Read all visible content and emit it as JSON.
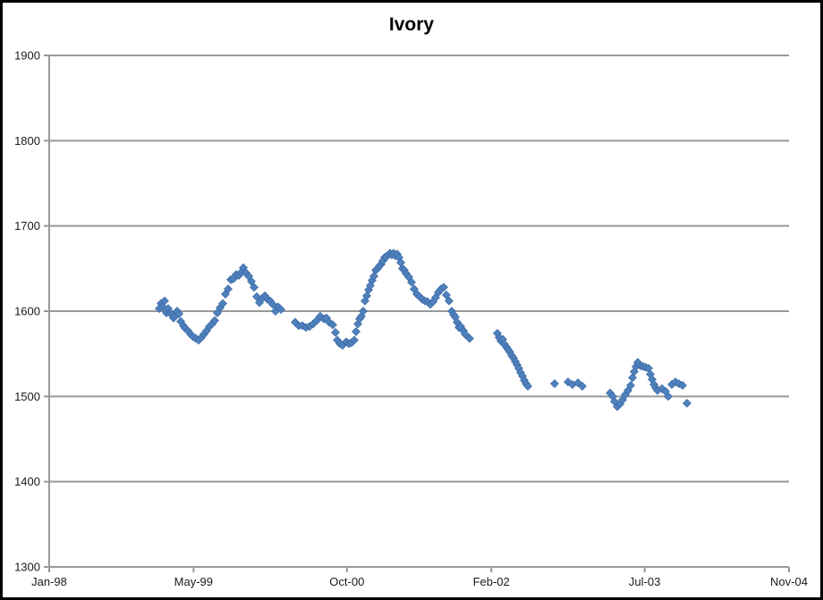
{
  "window": {
    "background": "#ffffff",
    "frame_border_color": "#000000"
  },
  "chart_data": {
    "type": "scatter",
    "title": "Ivory",
    "xlabel": "",
    "ylabel": "",
    "x_unit": "months since Jan-1998",
    "xlim": [
      0,
      82
    ],
    "ylim": [
      1300,
      1900
    ],
    "grid": "horizontal gridlines every 100",
    "gridline_color": "#999999",
    "label_color": "#1a1a1a",
    "legend": "none",
    "x_ticks": [
      {
        "offset": 0,
        "label": "Jan-98"
      },
      {
        "offset": 16,
        "label": "May-99"
      },
      {
        "offset": 33,
        "label": "Oct-00"
      },
      {
        "offset": 49,
        "label": "Feb-02"
      },
      {
        "offset": 66,
        "label": "Jul-03"
      },
      {
        "offset": 82,
        "label": "Nov-04"
      }
    ],
    "y_ticks": [
      1900,
      1800,
      1700,
      1600,
      1500,
      1400,
      1300
    ],
    "series": [
      {
        "name": "Ivory",
        "marker": "diamond",
        "color": "#4F81BD",
        "edge_color": "#3F6DA8",
        "points": [
          [
            12.2,
            1603
          ],
          [
            12.39,
            1609
          ],
          [
            12.59,
            1605
          ],
          [
            12.79,
            1612
          ],
          [
            12.99,
            1598
          ],
          [
            13.19,
            1603
          ],
          [
            13.39,
            1598
          ],
          [
            13.58,
            1596
          ],
          [
            13.78,
            1592
          ],
          [
            13.98,
            1595
          ],
          [
            14.18,
            1600
          ],
          [
            14.38,
            1597
          ],
          [
            14.58,
            1588
          ],
          [
            14.87,
            1583
          ],
          [
            15.07,
            1580
          ],
          [
            15.37,
            1577
          ],
          [
            15.67,
            1573
          ],
          [
            15.96,
            1570
          ],
          [
            16.26,
            1568
          ],
          [
            16.56,
            1566
          ],
          [
            16.86,
            1569
          ],
          [
            17.15,
            1573
          ],
          [
            17.45,
            1577
          ],
          [
            17.75,
            1582
          ],
          [
            18.05,
            1585
          ],
          [
            18.34,
            1589
          ],
          [
            18.64,
            1598
          ],
          [
            18.94,
            1604
          ],
          [
            19.24,
            1609
          ],
          [
            19.53,
            1620
          ],
          [
            19.83,
            1626
          ],
          [
            20.13,
            1637
          ],
          [
            20.42,
            1638
          ],
          [
            20.72,
            1643
          ],
          [
            21.02,
            1642
          ],
          [
            21.32,
            1646
          ],
          [
            21.52,
            1651
          ],
          [
            21.81,
            1645
          ],
          [
            22.11,
            1641
          ],
          [
            22.41,
            1635
          ],
          [
            22.71,
            1628
          ],
          [
            23.0,
            1617
          ],
          [
            23.3,
            1610
          ],
          [
            23.6,
            1615
          ],
          [
            23.9,
            1618
          ],
          [
            24.19,
            1614
          ],
          [
            24.49,
            1612
          ],
          [
            24.79,
            1608
          ],
          [
            25.08,
            1600
          ],
          [
            25.38,
            1605
          ],
          [
            25.68,
            1602
          ],
          [
            27.27,
            1587
          ],
          [
            27.66,
            1583
          ],
          [
            28.06,
            1583
          ],
          [
            28.46,
            1581
          ],
          [
            28.85,
            1582
          ],
          [
            29.25,
            1585
          ],
          [
            29.65,
            1589
          ],
          [
            30.04,
            1594
          ],
          [
            30.44,
            1591
          ],
          [
            30.74,
            1592
          ],
          [
            31.03,
            1587
          ],
          [
            31.43,
            1584
          ],
          [
            31.73,
            1575
          ],
          [
            31.93,
            1566
          ],
          [
            32.22,
            1562
          ],
          [
            32.52,
            1560
          ],
          [
            32.92,
            1564
          ],
          [
            33.22,
            1562
          ],
          [
            33.51,
            1563
          ],
          [
            33.81,
            1566
          ],
          [
            34.01,
            1576
          ],
          [
            34.21,
            1585
          ],
          [
            34.4,
            1591
          ],
          [
            34.6,
            1594
          ],
          [
            34.8,
            1600
          ],
          [
            35.0,
            1612
          ],
          [
            35.2,
            1618
          ],
          [
            35.4,
            1625
          ],
          [
            35.59,
            1630
          ],
          [
            35.79,
            1636
          ],
          [
            35.99,
            1641
          ],
          [
            36.19,
            1648
          ],
          [
            36.39,
            1650
          ],
          [
            36.59,
            1653
          ],
          [
            36.78,
            1655
          ],
          [
            36.98,
            1659
          ],
          [
            37.18,
            1663
          ],
          [
            37.38,
            1664
          ],
          [
            37.58,
            1666
          ],
          [
            37.78,
            1668
          ],
          [
            37.97,
            1666
          ],
          [
            38.17,
            1668
          ],
          [
            38.37,
            1665
          ],
          [
            38.57,
            1667
          ],
          [
            38.77,
            1663
          ],
          [
            38.97,
            1657
          ],
          [
            39.16,
            1650
          ],
          [
            39.36,
            1648
          ],
          [
            39.56,
            1644
          ],
          [
            39.86,
            1640
          ],
          [
            40.16,
            1634
          ],
          [
            40.45,
            1626
          ],
          [
            40.75,
            1620
          ],
          [
            41.05,
            1617
          ],
          [
            41.35,
            1614
          ],
          [
            41.64,
            1612
          ],
          [
            41.94,
            1611
          ],
          [
            42.24,
            1608
          ],
          [
            42.54,
            1611
          ],
          [
            42.83,
            1616
          ],
          [
            43.13,
            1622
          ],
          [
            43.43,
            1626
          ],
          [
            43.73,
            1628
          ],
          [
            44.02,
            1619
          ],
          [
            44.32,
            1612
          ],
          [
            44.62,
            1600
          ],
          [
            44.82,
            1596
          ],
          [
            45.01,
            1593
          ],
          [
            45.21,
            1587
          ],
          [
            45.41,
            1581
          ],
          [
            45.61,
            1582
          ],
          [
            45.91,
            1577
          ],
          [
            46.1,
            1573
          ],
          [
            46.6,
            1568
          ],
          [
            49.67,
            1574
          ],
          [
            49.87,
            1569
          ],
          [
            50.07,
            1565
          ],
          [
            50.27,
            1567
          ],
          [
            50.47,
            1561
          ],
          [
            50.67,
            1558
          ],
          [
            50.86,
            1555
          ],
          [
            51.06,
            1552
          ],
          [
            51.26,
            1548
          ],
          [
            51.46,
            1545
          ],
          [
            51.66,
            1541
          ],
          [
            51.86,
            1537
          ],
          [
            52.05,
            1533
          ],
          [
            52.25,
            1528
          ],
          [
            52.45,
            1524
          ],
          [
            52.65,
            1519
          ],
          [
            52.85,
            1515
          ],
          [
            53.05,
            1512
          ],
          [
            56.02,
            1515
          ],
          [
            57.51,
            1517
          ],
          [
            58.0,
            1514
          ],
          [
            58.6,
            1516
          ],
          [
            59.09,
            1512
          ],
          [
            62.17,
            1504
          ],
          [
            62.46,
            1500
          ],
          [
            62.66,
            1494
          ],
          [
            62.96,
            1488
          ],
          [
            63.26,
            1491
          ],
          [
            63.55,
            1496
          ],
          [
            63.85,
            1502
          ],
          [
            64.15,
            1507
          ],
          [
            64.45,
            1513
          ],
          [
            64.65,
            1522
          ],
          [
            64.84,
            1529
          ],
          [
            65.04,
            1535
          ],
          [
            65.24,
            1540
          ],
          [
            65.54,
            1536
          ],
          [
            65.84,
            1535
          ],
          [
            66.13,
            1534
          ],
          [
            66.43,
            1533
          ],
          [
            66.63,
            1526
          ],
          [
            66.83,
            1520
          ],
          [
            67.03,
            1514
          ],
          [
            67.22,
            1510
          ],
          [
            67.42,
            1507
          ],
          [
            67.92,
            1509
          ],
          [
            68.31,
            1506
          ],
          [
            68.61,
            1500
          ],
          [
            69.01,
            1514
          ],
          [
            69.41,
            1517
          ],
          [
            69.8,
            1515
          ],
          [
            70.2,
            1513
          ],
          [
            70.69,
            1492
          ]
        ]
      }
    ]
  }
}
